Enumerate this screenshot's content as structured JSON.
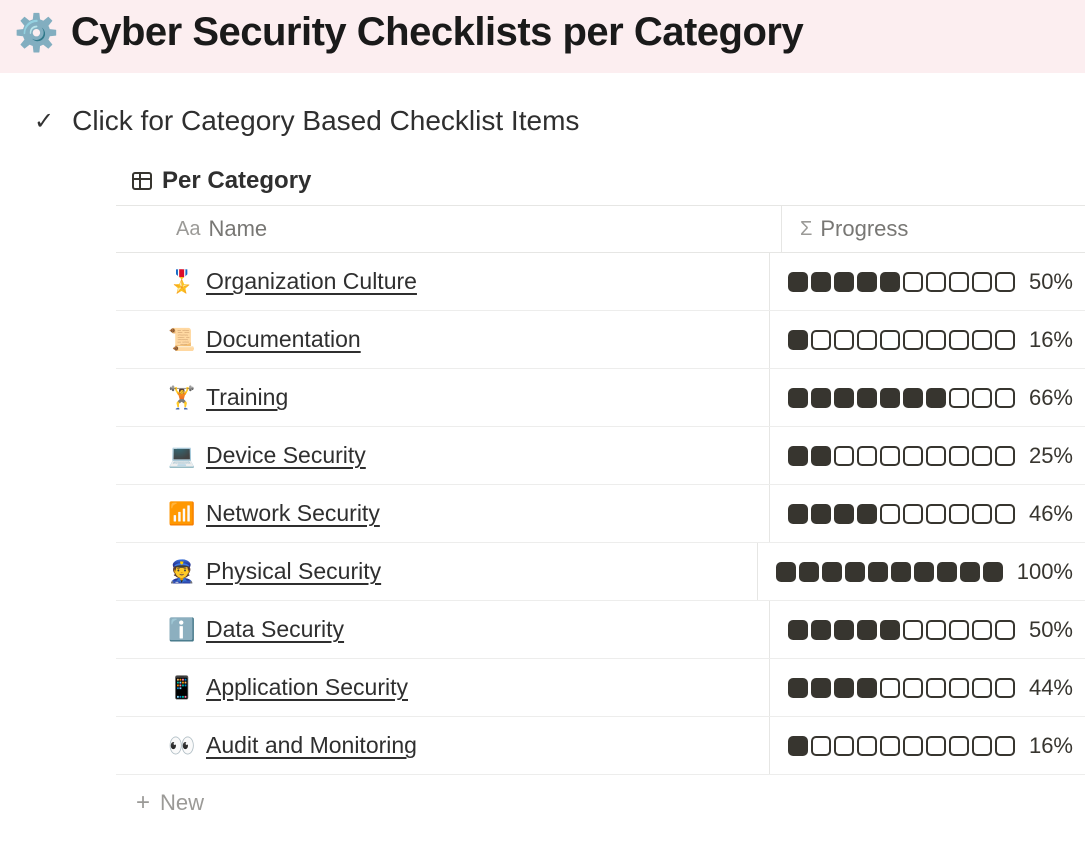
{
  "header": {
    "icon": "⚙️",
    "title": "Cyber Security Checklists per Category"
  },
  "toggle": {
    "icon": "✓",
    "label": "Click for Category Based Checklist Items"
  },
  "database": {
    "view_name": "Per Category",
    "columns": {
      "name": {
        "label": "Name",
        "type_icon": "Aa"
      },
      "progress": {
        "label": "Progress",
        "type_icon": "Σ"
      }
    },
    "progress_segments": 10,
    "rows": [
      {
        "emoji": "🎖️",
        "name": "Organization Culture",
        "filled": 5,
        "percent": "50%"
      },
      {
        "emoji": "📜",
        "name": "Documentation",
        "filled": 1,
        "percent": "16%"
      },
      {
        "emoji": "🏋️",
        "name": "Training",
        "filled": 7,
        "percent": "66%"
      },
      {
        "emoji": "💻",
        "name": "Device Security",
        "filled": 2,
        "percent": "25%"
      },
      {
        "emoji": "📶",
        "name": "Network Security",
        "filled": 4,
        "percent": "46%"
      },
      {
        "emoji": "👮",
        "name": "Physical Security",
        "filled": 10,
        "percent": "100%"
      },
      {
        "emoji": "ℹ️",
        "name": "Data Security",
        "filled": 5,
        "percent": "50%"
      },
      {
        "emoji": "📱",
        "name": "Application Security",
        "filled": 4,
        "percent": "44%"
      },
      {
        "emoji": "👀",
        "name": "Audit and Monitoring",
        "filled": 1,
        "percent": "16%"
      }
    ],
    "new_row_label": "New"
  },
  "style": {
    "banner_bg": "#fceef0",
    "seg_fill": "#37352f",
    "seg_border": "#37352f",
    "divider": "#e6e6e4"
  }
}
